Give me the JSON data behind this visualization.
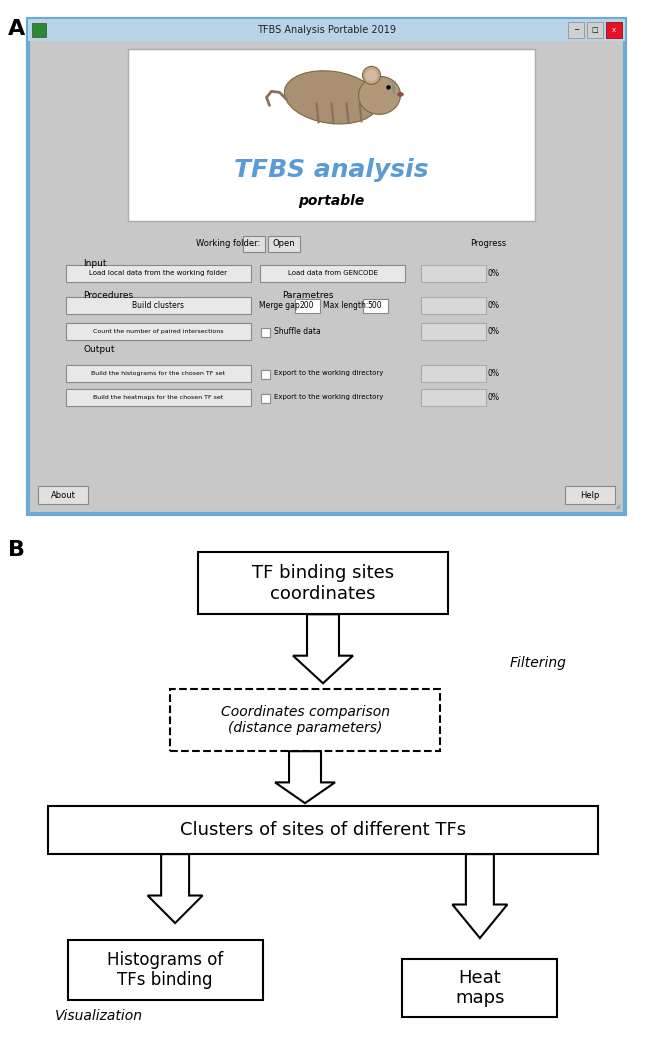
{
  "panel_A_label": "A",
  "panel_B_label": "B",
  "window_title": "TFBS Analysis Portable 2019",
  "window_bg": "#c8c8c8",
  "title_bar_bg": "#c0c0c0",
  "title_bar_text_color": "#333333",
  "win_border_color": "#6aaad4",
  "logo_text1": "TFBS analysis",
  "logo_text2": "portable",
  "logo_text1_color": "#5b9bd5",
  "logo_text2_color": "#000000",
  "input_label": "Input",
  "btn_load_local": "Load local data from the working folder",
  "btn_load_gencode": "Load data from GENCODE",
  "procedures_label": "Procedures",
  "parameters_label": "Parametres",
  "btn_build_clusters": "Build clusters",
  "merge_gap_label": "Merge gap:",
  "merge_gap_val": "200",
  "max_length_label": "Max length:",
  "max_length_val": "500",
  "btn_count_intersections": "Count the number of paired intersections",
  "shuffle_label": "Shuffle data",
  "output_label": "Output",
  "btn_histograms": "Build the histograms for the chosen TF set",
  "btn_heatmaps": "Build the heatmaps for the chosen TF set",
  "export_label": "Export to the working directory",
  "working_folder_label": "Working folder:",
  "progress_label": "Progress",
  "about_btn": "About",
  "help_btn": "Help",
  "flow_box1": "TF binding sites\ncoordinates",
  "flow_box2_dashed": "Coordinates comparison\n(distance parameters)",
  "flow_box3": "Clusters of sites of different TFs",
  "flow_box4a": "Histograms of\nTFs binding",
  "flow_box4b": "Heat\nmaps",
  "filtering_label": "Filtering",
  "visualization_label": "Visualization",
  "fig_bg": "#ffffff"
}
